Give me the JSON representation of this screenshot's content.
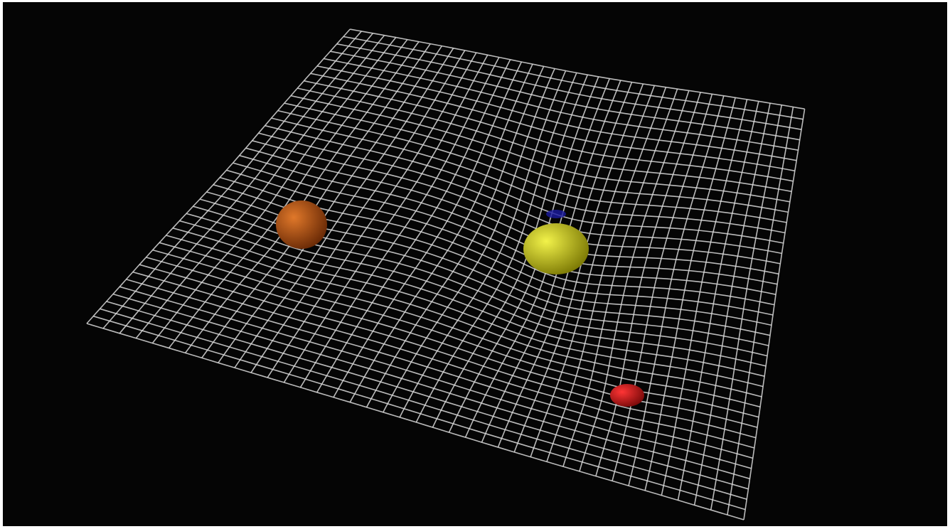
{
  "scene": {
    "background_color": "#050505",
    "frame_color": "#ffffff",
    "grid_color": "#d9d9d9",
    "grid_lines": 40,
    "objects": [
      {
        "name": "orange-sphere",
        "color": "#e0782a",
        "shade": "#6a2a06"
      },
      {
        "name": "yellow-sphere",
        "color": "#f2f24a",
        "shade": "#7d7a05"
      },
      {
        "name": "red-sphere",
        "color": "#ff3535",
        "shade": "#7a0a0a"
      }
    ]
  }
}
